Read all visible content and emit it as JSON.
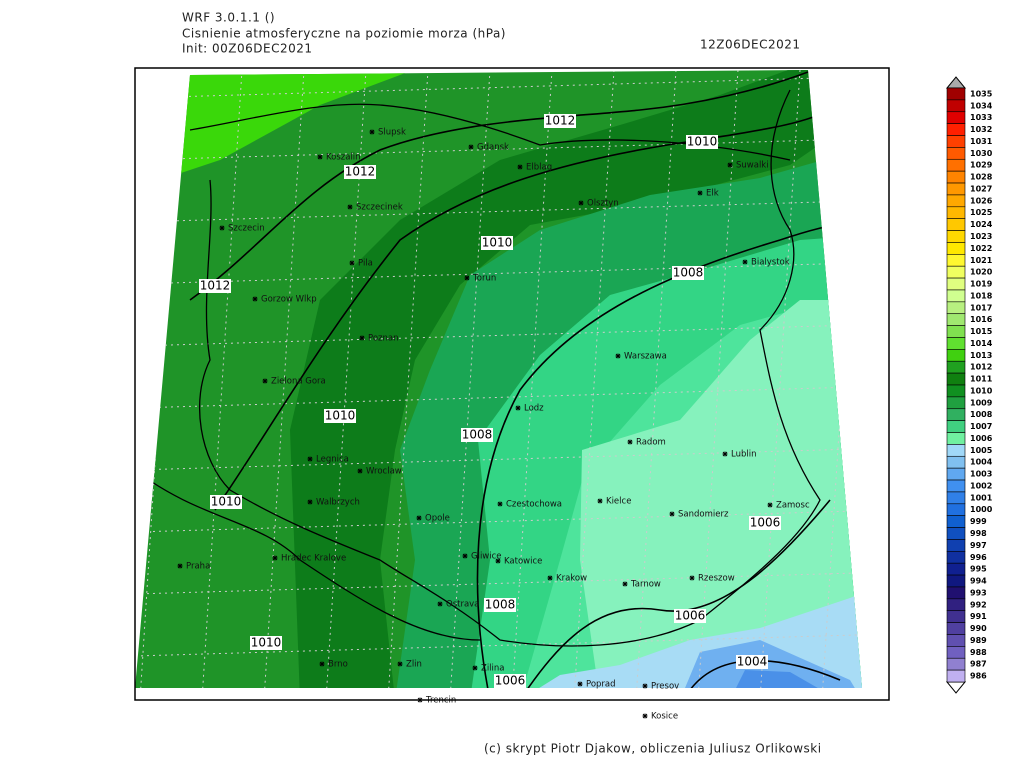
{
  "header": {
    "model": "WRF 3.0.1.1 ()",
    "title": "Cisnienie atmosferyczne na poziomie morza (hPa)",
    "init": "Init: 00Z06DEC2021",
    "valid": "12Z06DEC2021"
  },
  "legend": {
    "levels": [
      1035,
      1034,
      1033,
      1032,
      1031,
      1030,
      1029,
      1028,
      1027,
      1026,
      1025,
      1024,
      1023,
      1022,
      1021,
      1020,
      1019,
      1018,
      1017,
      1016,
      1015,
      1014,
      1013,
      1012,
      1011,
      1010,
      1009,
      1008,
      1007,
      1006,
      1005,
      1004,
      1003,
      1002,
      1001,
      1000,
      999,
      998,
      997,
      996,
      995,
      994,
      993,
      992,
      991,
      990,
      989,
      988,
      987,
      986
    ],
    "colors": [
      "#a00000",
      "#c00000",
      "#e00000",
      "#ff2000",
      "#ff4000",
      "#ff5a00",
      "#ff7000",
      "#ff8400",
      "#ff9800",
      "#ffa800",
      "#ffb800",
      "#ffc800",
      "#ffd800",
      "#ffe800",
      "#fff830",
      "#f0ff60",
      "#e0ff80",
      "#d0ff90",
      "#b8f080",
      "#a0e870",
      "#80e050",
      "#60e030",
      "#40d010",
      "#20a020",
      "#108010",
      "#109020",
      "#20a040",
      "#30b060",
      "#40d080",
      "#70f0a0",
      "#a0d8f8",
      "#80c0f0",
      "#60a8f0",
      "#4090f0",
      "#3080e8",
      "#2070e0",
      "#1060d0",
      "#1050c0",
      "#1040b0",
      "#1030a0",
      "#102090",
      "#101880",
      "#201070",
      "#302080",
      "#403090",
      "#5040a0",
      "#6050b0",
      "#7060c0",
      "#9080d0",
      "#c0b0f0"
    ]
  },
  "cities": [
    "Slupsk",
    "Koszalin",
    "Gdansk",
    "Elblag",
    "Olsztyn",
    "Suwalki",
    "Elk",
    "Szczecinek",
    "Szczecin",
    "Bialystok",
    "Pila",
    "Torun",
    "Gorzow Wlkp",
    "Poznan",
    "Warszawa",
    "Zielona Gora",
    "Lodz",
    "Radom",
    "Lublin",
    "Legnica",
    "Wroclaw",
    "Kielce",
    "Czestochowa",
    "Zamosc",
    "Walbrzych",
    "Opole",
    "Sandomierz",
    "Gliwice",
    "Katowice",
    "Praha",
    "Hradec Kralove",
    "Krakow",
    "Tarnow",
    "Rzeszow",
    "Ostrava",
    "Brno",
    "Zlin",
    "Zilina",
    "Poprad",
    "Presov",
    "Trencin",
    "Kosice"
  ],
  "contour_labels": [
    1012,
    1012,
    1012,
    1010,
    1010,
    1010,
    1010,
    1010,
    1008,
    1008,
    1008,
    1006,
    1006,
    1006,
    1004
  ],
  "footer": "(c) skrypt Piotr Djakow, obliczenia Juliusz Orlikowski"
}
